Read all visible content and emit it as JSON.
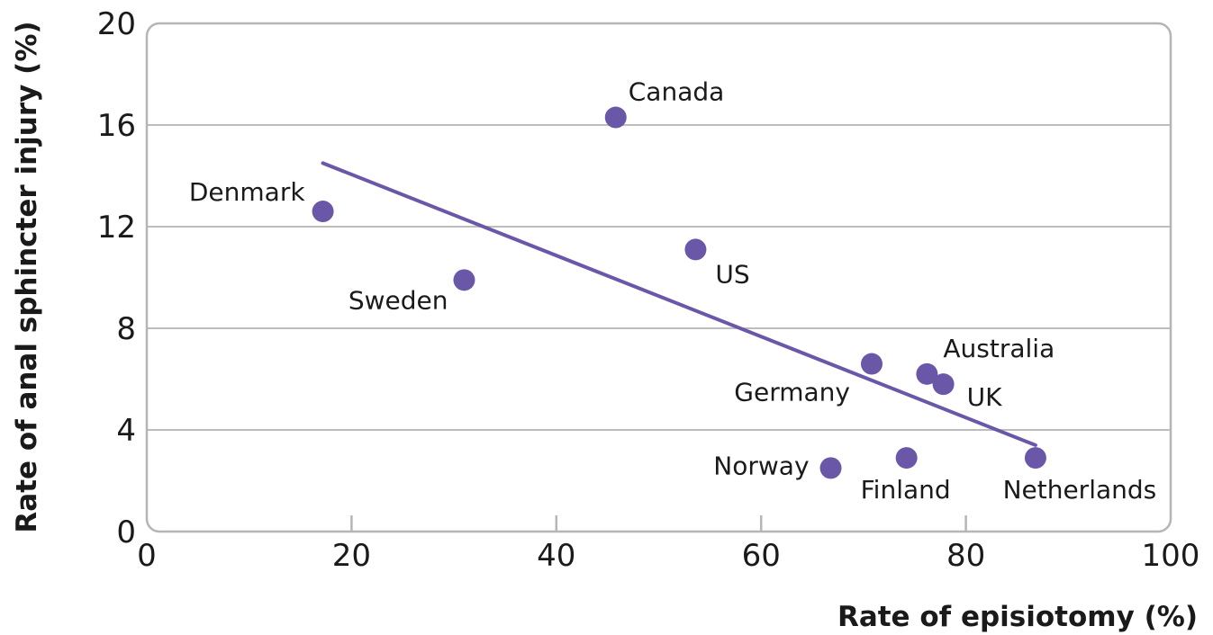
{
  "chart_data": {
    "type": "scatter",
    "title": "",
    "xlabel": "Rate of episiotomy (%)",
    "ylabel": "Rate of anal sphincter injury (%)",
    "xlim": [
      0,
      100
    ],
    "ylim": [
      0,
      20
    ],
    "xticks": [
      0,
      20,
      40,
      60,
      80,
      100
    ],
    "yticks": [
      0,
      4,
      8,
      12,
      16,
      20
    ],
    "grid": "horizontal",
    "legend": "none",
    "colors": {
      "marker": "#6b57a8",
      "trend": "#6b57a8",
      "grid": "#bdbdbd",
      "frame": "#b5b5b5"
    },
    "points": [
      {
        "label": "Canada",
        "x": 45.8,
        "y": 16.3
      },
      {
        "label": "Denmark",
        "x": 17.2,
        "y": 12.6
      },
      {
        "label": "US",
        "x": 53.6,
        "y": 11.1
      },
      {
        "label": "Sweden",
        "x": 31.0,
        "y": 9.9
      },
      {
        "label": "Australia",
        "x": 76.2,
        "y": 6.2
      },
      {
        "label": "UK",
        "x": 77.8,
        "y": 5.8
      },
      {
        "label": "Germany",
        "x": 70.8,
        "y": 6.6
      },
      {
        "label": "Norway",
        "x": 66.8,
        "y": 2.5
      },
      {
        "label": "Finland",
        "x": 74.2,
        "y": 2.9
      },
      {
        "label": "Netherlands",
        "x": 86.8,
        "y": 2.9
      }
    ],
    "trendline": {
      "x": [
        17.2,
        86.8
      ],
      "y": [
        14.5,
        3.4
      ]
    }
  }
}
